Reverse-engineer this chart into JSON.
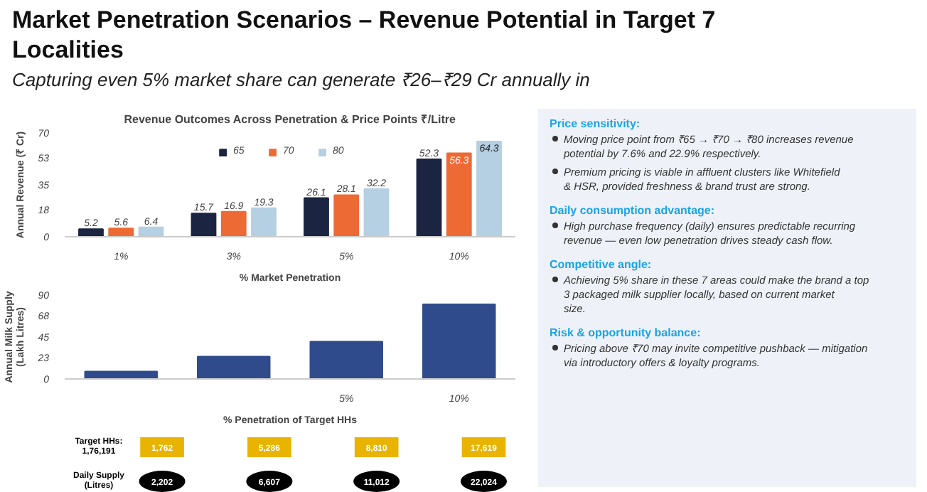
{
  "chart_data": [
    {
      "type": "other",
      "title": "Market Penetration Scenarios – Revenue Potential in Target 7 Localities",
      "subtitle": "Capturing even 5% market share can generate ₹26–₹29 Cr annually in"
    },
    {
      "type": "bar",
      "title": "Revenue Outcomes Across Penetration & Price Points ₹/Litre",
      "xlabel": "% Market Penetration",
      "ylabel": "Annual Revenue (₹ Cr)",
      "categories": [
        "1%",
        "3%",
        "5%",
        "10%"
      ],
      "series": [
        {
          "name": "65",
          "color": "#1b2541",
          "values": [
            5.2,
            15.7,
            26.1,
            52.3
          ]
        },
        {
          "name": "70",
          "color": "#ee6a35",
          "values": [
            5.6,
            16.9,
            28.1,
            56.3
          ]
        },
        {
          "name": "80",
          "color": "#b5cfe3",
          "values": [
            6.4,
            19.3,
            32.2,
            64.3
          ]
        }
      ],
      "ylim": [
        0,
        70
      ],
      "yticks": [
        0,
        18,
        35,
        53,
        70
      ],
      "data_labels": true,
      "legend": "top"
    },
    {
      "type": "bar",
      "xlabel": "% Penetration of Target HHs",
      "ylabel": "Annual Milk Supply (Lakh Litres)",
      "categories": [
        null,
        null,
        "5%",
        "10%"
      ],
      "values": [
        8,
        24,
        40,
        80
      ],
      "color": "#2f4b8c",
      "ylim": [
        0,
        90
      ],
      "yticks": [
        0,
        23,
        45,
        68,
        90
      ]
    },
    {
      "type": "other",
      "annotations": [
        "Target HHs: 1,76,191",
        "1,762",
        "5,286",
        "8,810",
        "17,619",
        "Daily Supply (Litres)",
        "2,202",
        "6,607",
        "11,012",
        "22,024"
      ]
    },
    {
      "type": "other",
      "title": "Price sensitivity:",
      "annotations": [
        "Moving price point from ₹65 → ₹70 → ₹80 increases revenue potential by 7.6% and 22.9% respectively.",
        "Premium pricing is viable in affluent clusters like Whitefield & HSR, provided freshness & brand trust are strong."
      ]
    },
    {
      "type": "other",
      "title": "Daily consumption advantage:",
      "annotations": [
        "High purchase frequency (daily) ensures predictable recurring revenue — even low penetration drives steady cash flow."
      ]
    },
    {
      "type": "other",
      "title": "Competitive angle:",
      "annotations": [
        "Achieving 5% share in these 7 areas could make the brand a top 3 packaged milk supplier locally, based on current market size."
      ]
    },
    {
      "type": "other",
      "title": "Risk & opportunity balance:",
      "annotations": [
        "Pricing above ₹70 may invite competitive pushback — mitigation via introductory offers & loyalty programs."
      ]
    }
  ]
}
